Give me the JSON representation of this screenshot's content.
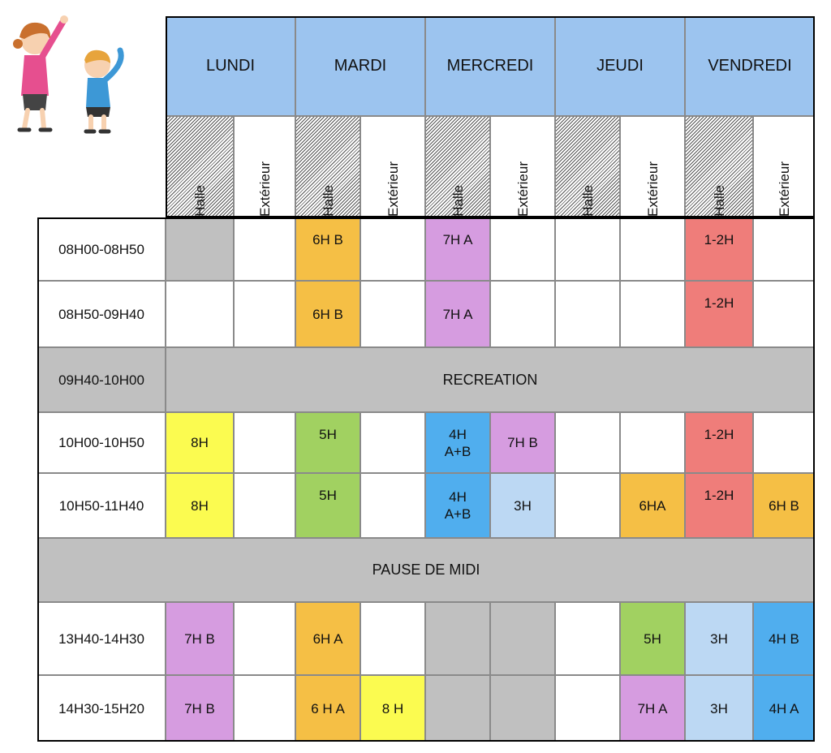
{
  "colors": {
    "day_header": "#9cc4ef",
    "break_row": "#c0c0c0",
    "grey_slot": "#c0c0c0",
    "yellow": "#fbfb50",
    "orange": "#f5bf45",
    "violet": "#d69ce0",
    "green": "#a1d161",
    "blue": "#50aeee",
    "light_blue": "#bcd8f3",
    "red": "#ef7d7a"
  },
  "days": [
    "LUNDI",
    "MARDI",
    "MERCREDI",
    "JEUDI",
    "VENDREDI"
  ],
  "sub_headers": {
    "hall": "Halle",
    "outdoor": "Extérieur"
  },
  "times": [
    "08H00-08H50",
    "08H50-09H40",
    "09H40-10H00",
    "10H00-10H50",
    "10H50-11H40",
    "13H40-14H30",
    "14H30-15H20"
  ],
  "breaks": {
    "recreation": "RECREATION",
    "lunch": "PAUSE DE MIDI"
  },
  "slots": {
    "r1": [
      "",
      "",
      "6H B",
      "",
      "7H A",
      "",
      "",
      "",
      "1-2H",
      ""
    ],
    "r2": [
      "",
      "",
      "6H B",
      "",
      "7H A",
      "",
      "",
      "",
      "1-2H",
      ""
    ],
    "r3": [
      "8H",
      "",
      "5H",
      "",
      "4H\nA+B",
      "7H B",
      "",
      "",
      "1-2H",
      ""
    ],
    "r4": [
      "8H",
      "",
      "5H",
      "",
      "4H\nA+B",
      "3H",
      "",
      "6HA",
      "1-2H",
      "6H B"
    ],
    "r5": [
      "7H B",
      "",
      "6H A",
      "",
      "",
      "",
      "",
      "5H",
      "3H",
      "4H B"
    ],
    "r6": [
      "7H B",
      "",
      "6 H A",
      "8 H",
      "",
      "",
      "",
      "7H A",
      "3H",
      "4H A"
    ]
  },
  "illustration": "children-exercising-icon"
}
